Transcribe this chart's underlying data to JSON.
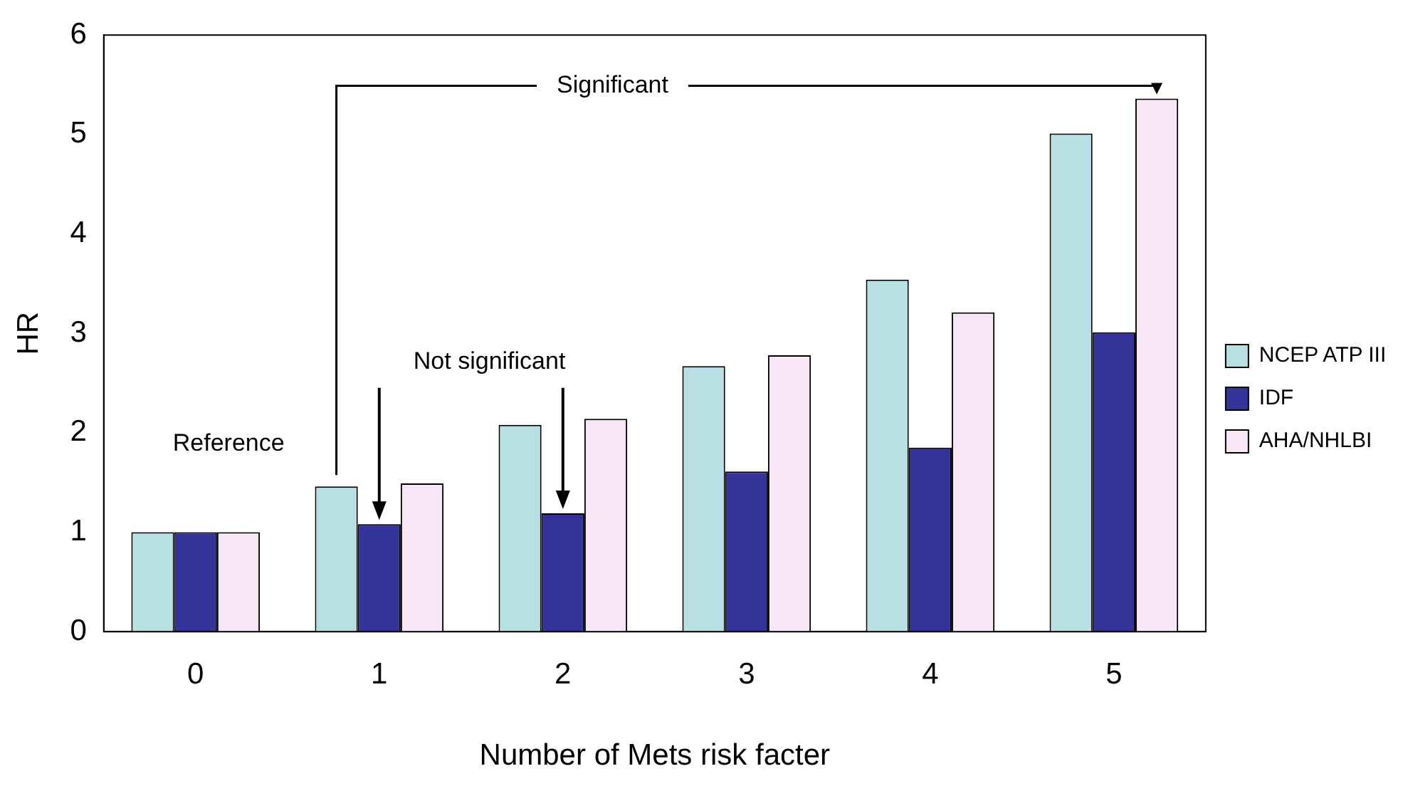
{
  "chart_data": {
    "type": "bar",
    "xlabel": "Number of Mets risk facter",
    "ylabel": "HR",
    "categories": [
      "0",
      "1",
      "2",
      "3",
      "4",
      "5"
    ],
    "series": [
      {
        "name": "NCEP ATP III",
        "color": "#b8e0e4",
        "values": [
          1,
          1.46,
          2.08,
          2.67,
          3.54,
          5.01
        ]
      },
      {
        "name": "IDF",
        "color": "#333399",
        "values": [
          1,
          1.08,
          1.19,
          1.61,
          1.85,
          3.01
        ]
      },
      {
        "name": "AHA/NHLBI",
        "color": "#f6e6f6",
        "values": [
          1,
          1.49,
          2.14,
          2.78,
          3.21,
          5.36
        ]
      }
    ],
    "ylim": [
      0,
      6
    ],
    "yticks": [
      0,
      1,
      2,
      3,
      4,
      5,
      6
    ],
    "grid": false,
    "legend": "right",
    "annotations": [
      "Significant",
      "Not significant",
      "Reference"
    ]
  }
}
